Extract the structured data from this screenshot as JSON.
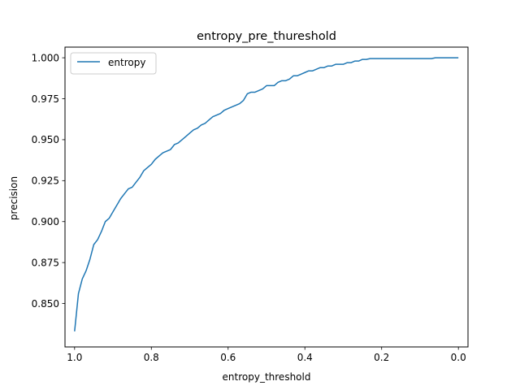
{
  "chart_data": {
    "type": "line",
    "title": "entropy_pre_thureshold",
    "xlabel": "entropy_threshold",
    "ylabel": "precision",
    "xlim": [
      1.025,
      -0.025
    ],
    "ylim": [
      0.8235,
      1.0065
    ],
    "x_inverted": true,
    "x_ticks": [
      1.0,
      0.8,
      0.6,
      0.4,
      0.2,
      0.0
    ],
    "x_tick_labels": [
      "1.0",
      "0.8",
      "0.6",
      "0.4",
      "0.2",
      "0.0"
    ],
    "y_ticks": [
      0.85,
      0.875,
      0.9,
      0.925,
      0.95,
      0.975,
      1.0
    ],
    "y_tick_labels": [
      "0.850",
      "0.875",
      "0.900",
      "0.925",
      "0.950",
      "0.975",
      "1.000"
    ],
    "grid": false,
    "legend_position": "top-left",
    "series": [
      {
        "name": "entropy",
        "color": "#1f77b4",
        "x": [
          1.0,
          0.99,
          0.98,
          0.97,
          0.96,
          0.95,
          0.94,
          0.93,
          0.92,
          0.91,
          0.9,
          0.89,
          0.88,
          0.87,
          0.86,
          0.85,
          0.84,
          0.83,
          0.82,
          0.81,
          0.8,
          0.79,
          0.78,
          0.77,
          0.76,
          0.75,
          0.74,
          0.73,
          0.72,
          0.71,
          0.7,
          0.69,
          0.68,
          0.67,
          0.66,
          0.65,
          0.64,
          0.63,
          0.62,
          0.61,
          0.6,
          0.59,
          0.58,
          0.57,
          0.56,
          0.55,
          0.54,
          0.53,
          0.52,
          0.51,
          0.5,
          0.49,
          0.48,
          0.47,
          0.46,
          0.45,
          0.44,
          0.43,
          0.42,
          0.41,
          0.4,
          0.39,
          0.38,
          0.37,
          0.36,
          0.35,
          0.34,
          0.33,
          0.32,
          0.31,
          0.3,
          0.29,
          0.28,
          0.27,
          0.26,
          0.25,
          0.24,
          0.23,
          0.22,
          0.2,
          0.18,
          0.16,
          0.14,
          0.12,
          0.1,
          0.08,
          0.07,
          0.06,
          0.04,
          0.02,
          0.0
        ],
        "y": [
          0.833,
          0.856,
          0.865,
          0.87,
          0.877,
          0.886,
          0.889,
          0.894,
          0.9,
          0.902,
          0.906,
          0.91,
          0.914,
          0.917,
          0.92,
          0.921,
          0.924,
          0.927,
          0.931,
          0.933,
          0.935,
          0.938,
          0.94,
          0.942,
          0.943,
          0.944,
          0.947,
          0.948,
          0.95,
          0.952,
          0.954,
          0.956,
          0.957,
          0.959,
          0.96,
          0.962,
          0.964,
          0.965,
          0.966,
          0.968,
          0.969,
          0.97,
          0.971,
          0.972,
          0.974,
          0.978,
          0.979,
          0.979,
          0.98,
          0.981,
          0.983,
          0.983,
          0.983,
          0.985,
          0.986,
          0.986,
          0.987,
          0.989,
          0.989,
          0.99,
          0.991,
          0.992,
          0.992,
          0.993,
          0.994,
          0.994,
          0.995,
          0.995,
          0.996,
          0.996,
          0.996,
          0.997,
          0.997,
          0.998,
          0.998,
          0.999,
          0.999,
          0.9995,
          0.9995,
          0.9995,
          0.9995,
          0.9995,
          0.9995,
          0.9995,
          0.9995,
          0.9995,
          0.9995,
          1.0,
          1.0,
          1.0,
          1.0
        ]
      }
    ]
  }
}
